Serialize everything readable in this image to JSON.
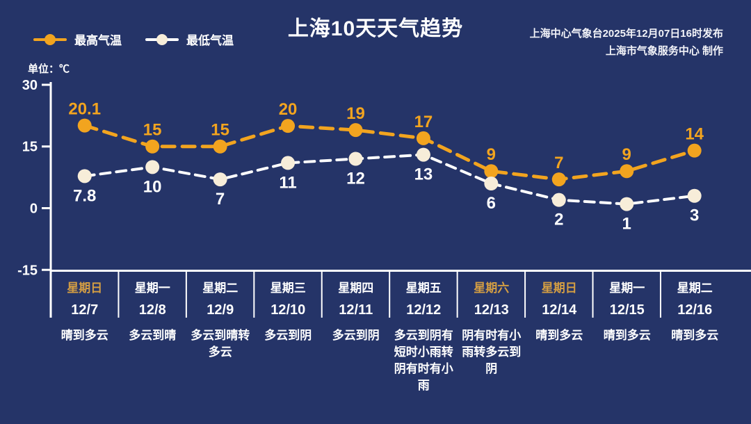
{
  "header": {
    "title": "上海10天天气趋势",
    "publisher_line1": "上海中心气象台2025年12月07日16时发布",
    "publisher_line2": "上海市气象服务中心  制作",
    "unit_label": "单位：℃"
  },
  "legend": [
    {
      "label": "最高气温",
      "line_color": "#F2A41F",
      "marker_color": "#F2A41F"
    },
    {
      "label": "最低气温",
      "line_color": "#FFFFFF",
      "marker_color": "#F7EDD9"
    }
  ],
  "chart_data": {
    "type": "line",
    "title": "上海10天天气趋势",
    "ylabel": "单位：℃",
    "ylim": [
      -15,
      30
    ],
    "yticks": [
      30,
      15,
      0,
      -15
    ],
    "grid": false,
    "legend_position": "top-left",
    "line_style": "dashed",
    "categories": [
      "12/7",
      "12/8",
      "12/9",
      "12/10",
      "12/11",
      "12/12",
      "12/13",
      "12/14",
      "12/15",
      "12/16"
    ],
    "series": [
      {
        "name": "最高气温",
        "values": [
          20.1,
          15,
          15,
          20,
          19,
          17,
          9,
          7,
          9,
          14
        ],
        "line_color": "#F2A41F",
        "marker_color": "#F2A41F",
        "label_color": "#F2A41F"
      },
      {
        "name": "最低气温",
        "values": [
          7.8,
          10,
          7,
          11,
          12,
          13,
          6,
          2,
          1,
          3
        ],
        "line_color": "#FFFFFF",
        "marker_color": "#F7EDD9",
        "label_color": "#FFFFFF"
      }
    ]
  },
  "days": [
    {
      "weekday": "星期日",
      "date": "12/7",
      "weather": "晴到多云",
      "is_weekend": true
    },
    {
      "weekday": "星期一",
      "date": "12/8",
      "weather": "多云到晴",
      "is_weekend": false
    },
    {
      "weekday": "星期二",
      "date": "12/9",
      "weather": "多云到晴转多云",
      "is_weekend": false
    },
    {
      "weekday": "星期三",
      "date": "12/10",
      "weather": "多云到阴",
      "is_weekend": false
    },
    {
      "weekday": "星期四",
      "date": "12/11",
      "weather": "多云到阴",
      "is_weekend": false
    },
    {
      "weekday": "星期五",
      "date": "12/12",
      "weather": "多云到阴有短时小雨转阴有时有小雨",
      "is_weekend": false
    },
    {
      "weekday": "星期六",
      "date": "12/13",
      "weather": "阴有时有小雨转多云到阴",
      "is_weekend": true
    },
    {
      "weekday": "星期日",
      "date": "12/14",
      "weather": "晴到多云",
      "is_weekend": true
    },
    {
      "weekday": "星期一",
      "date": "12/15",
      "weather": "晴到多云",
      "is_weekend": false
    },
    {
      "weekday": "星期二",
      "date": "12/16",
      "weather": "晴到多云",
      "is_weekend": false
    }
  ],
  "colors": {
    "background": "#253468",
    "axis": "#FFFFFF",
    "high_temp": "#F2A41F",
    "low_temp_marker": "#F7EDD9",
    "weekend_day": "#D49E43",
    "weekday": "#FFFFFF"
  }
}
